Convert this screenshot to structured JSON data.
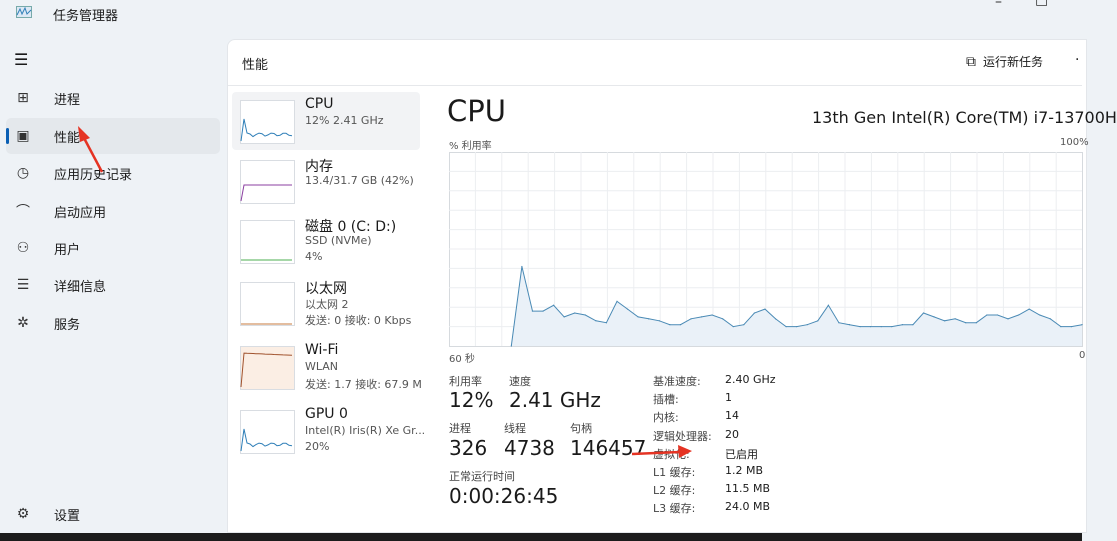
{
  "window": {
    "title": "任务管理器"
  },
  "sidebar": {
    "items": [
      {
        "label": "进程",
        "icon": "processes-icon"
      },
      {
        "label": "性能",
        "icon": "performance-icon",
        "active": true
      },
      {
        "label": "应用历史记录",
        "icon": "history-icon"
      },
      {
        "label": "启动应用",
        "icon": "startup-icon"
      },
      {
        "label": "用户",
        "icon": "users-icon"
      },
      {
        "label": "详细信息",
        "icon": "details-icon"
      },
      {
        "label": "服务",
        "icon": "services-icon"
      }
    ],
    "settings": "设置"
  },
  "header": {
    "title": "性能",
    "run_task": "运行新任务"
  },
  "devices": [
    {
      "name": "CPU",
      "line1": "12%  2.41 GHz",
      "line2": "",
      "color": "#2f7fb8"
    },
    {
      "name": "内存",
      "line1": "13.4/31.7 GB (42%)",
      "line2": "",
      "color": "#8b3fa0"
    },
    {
      "name": "磁盘 0 (C: D:)",
      "line1": "SSD (NVMe)",
      "line2": "4%",
      "color": "#4caf50"
    },
    {
      "name": "以太网",
      "line1": "以太网 2",
      "line2": "发送: 0 接收: 0 Kbps",
      "color": "#c77b3f"
    },
    {
      "name": "Wi-Fi",
      "line1": "WLAN",
      "line2": "发送: 1.7 接收: 67.9 M",
      "color": "#a0522d"
    },
    {
      "name": "GPU 0",
      "line1": "Intel(R) Iris(R) Xe Gr...",
      "line2": "20%",
      "color": "#2f7fb8"
    }
  ],
  "detail": {
    "title": "CPU",
    "model": "13th Gen Intel(R) Core(TM) i7-13700H",
    "stats": {
      "util_label": "利用率",
      "util": "12%",
      "speed_label": "速度",
      "speed": "2.41 GHz",
      "proc_label": "进程",
      "proc": "326",
      "threads_label": "线程",
      "threads": "4738",
      "handles_label": "句柄",
      "handles": "146457",
      "uptime_label": "正常运行时间",
      "uptime": "0:00:26:45"
    },
    "specs": [
      {
        "k": "基准速度:",
        "v": "2.40 GHz"
      },
      {
        "k": "插槽:",
        "v": "1"
      },
      {
        "k": "内核:",
        "v": "14"
      },
      {
        "k": "逻辑处理器:",
        "v": "20"
      },
      {
        "k": "虚拟化:",
        "v": "已启用"
      },
      {
        "k": "L1 缓存:",
        "v": "1.2 MB"
      },
      {
        "k": "L2 缓存:",
        "v": "11.5 MB"
      },
      {
        "k": "L3 缓存:",
        "v": "24.0 MB"
      }
    ]
  },
  "chart_data": {
    "type": "area",
    "ylabel": "% 利用率",
    "ymax_label": "100%",
    "xmin_label": "60 秒",
    "xmax_label": "0",
    "ylim": [
      0,
      100
    ],
    "xlim": [
      60,
      0
    ],
    "grid": true,
    "color": "#4a8ab5",
    "values": [
      null,
      null,
      null,
      null,
      null,
      0,
      41,
      18,
      18,
      21,
      15,
      17,
      16,
      13,
      12,
      23,
      19,
      15,
      14,
      13,
      11,
      11,
      14,
      15,
      16,
      14,
      10,
      11,
      17,
      19,
      14,
      10,
      10,
      11,
      13,
      21,
      12,
      11,
      10,
      10,
      10,
      10,
      11,
      11,
      17,
      15,
      13,
      14,
      12,
      12,
      16,
      16,
      14,
      16,
      19,
      16,
      14,
      10,
      10,
      11
    ]
  }
}
